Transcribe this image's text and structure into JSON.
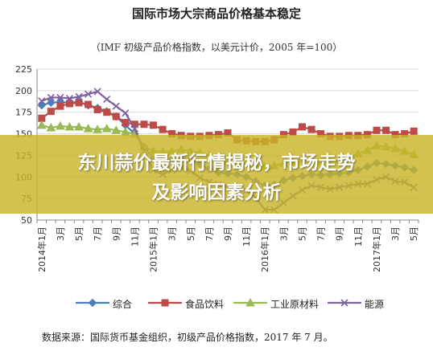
{
  "chart_data": {
    "type": "line",
    "title": "国际市场大宗商品价格基本稳定",
    "subtitle": "（IMF 初级产品价格指数，以美元计价，2005 年=100）",
    "ylim": [
      50,
      225
    ],
    "yticks": [
      50,
      75,
      100,
      125,
      150,
      175,
      200,
      225
    ],
    "grid": true,
    "legend_position": "bottom",
    "x_ticks": [
      {
        "i": 0,
        "label": "2014年1月"
      },
      {
        "i": 2,
        "label": "3月"
      },
      {
        "i": 4,
        "label": "5月"
      },
      {
        "i": 6,
        "label": "7月"
      },
      {
        "i": 8,
        "label": "9月"
      },
      {
        "i": 10,
        "label": "11月"
      },
      {
        "i": 12,
        "label": "2015年1月"
      },
      {
        "i": 14,
        "label": "3月"
      },
      {
        "i": 16,
        "label": "5月"
      },
      {
        "i": 18,
        "label": "7月"
      },
      {
        "i": 20,
        "label": "9月"
      },
      {
        "i": 22,
        "label": "11月"
      },
      {
        "i": 24,
        "label": "2016年1月"
      },
      {
        "i": 26,
        "label": "3月"
      },
      {
        "i": 28,
        "label": "5月"
      },
      {
        "i": 30,
        "label": "7月"
      },
      {
        "i": 32,
        "label": "9月"
      },
      {
        "i": 34,
        "label": "11月"
      },
      {
        "i": 36,
        "label": "2017年1月"
      },
      {
        "i": 38,
        "label": "3月"
      },
      {
        "i": 40,
        "label": "5月"
      }
    ],
    "series": [
      {
        "name": "综合",
        "color": "#4a7ebb",
        "marker": "diamond",
        "values": [
          183,
          186,
          187,
          186,
          187,
          183,
          180,
          176,
          170,
          160,
          150,
          135,
          121,
          119,
          120,
          121,
          121,
          115,
          109,
          105,
          104,
          103,
          100,
          95,
          90,
          91,
          96,
          99,
          101,
          103,
          102,
          103,
          104,
          105,
          108,
          112,
          116,
          115,
          113,
          111,
          108
        ]
      },
      {
        "name": "食品饮料",
        "color": "#be4b48",
        "marker": "square",
        "values": [
          168,
          176,
          182,
          185,
          186,
          184,
          178,
          175,
          170,
          163,
          161,
          161,
          160,
          155,
          150,
          148,
          147,
          147,
          148,
          149,
          151,
          143,
          142,
          141,
          141,
          143,
          149,
          152,
          158,
          155,
          150,
          147,
          147,
          148,
          148,
          149,
          154,
          154,
          149,
          150,
          153
        ]
      },
      {
        "name": "工业原材料",
        "color": "#98b954",
        "marker": "triangle",
        "values": [
          160,
          157,
          159,
          158,
          158,
          156,
          155,
          156,
          154,
          152,
          150,
          135,
          130,
          129,
          130,
          132,
          130,
          128,
          125,
          120,
          118,
          117,
          116,
          115,
          112,
          113,
          116,
          118,
          120,
          119,
          118,
          118,
          120,
          123,
          127,
          131,
          136,
          135,
          133,
          130,
          126
        ]
      },
      {
        "name": "能源",
        "color": "#7d60a0",
        "marker": "x",
        "values": [
          188,
          192,
          192,
          191,
          193,
          196,
          199,
          190,
          182,
          174,
          156,
          130,
          108,
          103,
          108,
          110,
          107,
          99,
          94,
          91,
          88,
          88,
          84,
          76,
          62,
          62,
          70,
          78,
          85,
          90,
          88,
          86,
          88,
          90,
          92,
          92,
          97,
          100,
          95,
          94,
          88
        ]
      }
    ]
  },
  "banner": {
    "line1": "东川蒜价最新行情揭秘，市场走势",
    "line2": "及影响因素分析"
  },
  "source_note": "数据来源：国际货币基金组织，初级产品价格指数，2017 年 7 月。"
}
